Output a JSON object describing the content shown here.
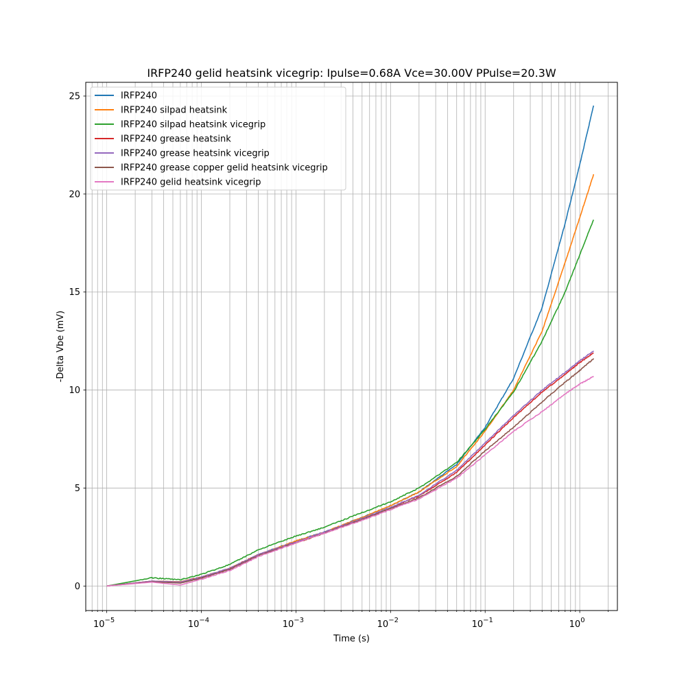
{
  "chart_data": {
    "type": "line",
    "title": "IRFP240 gelid heatsink vicegrip: Ipulse=0.68A Vce=30.00V PPulse=20.3W",
    "xlabel": "Time (s)",
    "ylabel": "-Delta Vbe (mV)",
    "xscale": "log",
    "xlim": [
      6e-06,
      2.5
    ],
    "ylim": [
      -1.25,
      25.7
    ],
    "grid": true,
    "legend_position": "upper-left",
    "x_ticks": [
      {
        "value": 1e-05,
        "base": "10",
        "exp": "−5"
      },
      {
        "value": 0.0001,
        "base": "10",
        "exp": "−4"
      },
      {
        "value": 0.001,
        "base": "10",
        "exp": "−3"
      },
      {
        "value": 0.01,
        "base": "10",
        "exp": "−2"
      },
      {
        "value": 0.1,
        "base": "10",
        "exp": "−1"
      },
      {
        "value": 1,
        "base": "10",
        "exp": "0"
      }
    ],
    "y_ticks": [
      {
        "value": 0,
        "label": "0"
      },
      {
        "value": 5,
        "label": "5"
      },
      {
        "value": 10,
        "label": "10"
      },
      {
        "value": 15,
        "label": "15"
      },
      {
        "value": 20,
        "label": "20"
      },
      {
        "value": 25,
        "label": "25"
      }
    ],
    "series": [
      {
        "name": "IRFP240",
        "color": "#1f77b4",
        "points": [
          [
            1e-05,
            0.0
          ],
          [
            3e-05,
            0.25
          ],
          [
            6e-05,
            0.22
          ],
          [
            0.0001,
            0.45
          ],
          [
            0.0002,
            0.9
          ],
          [
            0.0004,
            1.6
          ],
          [
            0.001,
            2.3
          ],
          [
            0.002,
            2.75
          ],
          [
            0.005,
            3.5
          ],
          [
            0.01,
            4.1
          ],
          [
            0.02,
            4.8
          ],
          [
            0.05,
            6.2
          ],
          [
            0.1,
            8.1
          ],
          [
            0.2,
            10.6
          ],
          [
            0.4,
            14.2
          ],
          [
            0.7,
            18.5
          ],
          [
            1.0,
            21.5
          ],
          [
            1.4,
            24.5
          ]
        ]
      },
      {
        "name": "IRFP240 silpad heatsink",
        "color": "#ff7f0e",
        "points": [
          [
            1e-05,
            0.0
          ],
          [
            3e-05,
            0.25
          ],
          [
            6e-05,
            0.22
          ],
          [
            0.0001,
            0.45
          ],
          [
            0.0002,
            0.9
          ],
          [
            0.0004,
            1.6
          ],
          [
            0.001,
            2.3
          ],
          [
            0.002,
            2.75
          ],
          [
            0.005,
            3.5
          ],
          [
            0.01,
            4.1
          ],
          [
            0.02,
            4.8
          ],
          [
            0.05,
            6.1
          ],
          [
            0.1,
            7.9
          ],
          [
            0.2,
            10.0
          ],
          [
            0.4,
            13.0
          ],
          [
            0.7,
            16.5
          ],
          [
            1.0,
            18.8
          ],
          [
            1.4,
            21.0
          ]
        ]
      },
      {
        "name": "IRFP240 silpad heatsink vicegrip",
        "color": "#2ca02c",
        "points": [
          [
            1e-05,
            0.0
          ],
          [
            3e-05,
            0.42
          ],
          [
            6e-05,
            0.32
          ],
          [
            0.0001,
            0.6
          ],
          [
            0.0002,
            1.1
          ],
          [
            0.0004,
            1.85
          ],
          [
            0.001,
            2.55
          ],
          [
            0.002,
            3.0
          ],
          [
            0.005,
            3.75
          ],
          [
            0.01,
            4.3
          ],
          [
            0.02,
            5.0
          ],
          [
            0.05,
            6.3
          ],
          [
            0.1,
            8.0
          ],
          [
            0.2,
            9.9
          ],
          [
            0.4,
            12.5
          ],
          [
            0.7,
            15.0
          ],
          [
            1.0,
            16.9
          ],
          [
            1.4,
            18.7
          ]
        ]
      },
      {
        "name": "IRFP240 grease heatsink",
        "color": "#d62728",
        "points": [
          [
            1e-05,
            0.0
          ],
          [
            3e-05,
            0.25
          ],
          [
            6e-05,
            0.2
          ],
          [
            0.0001,
            0.45
          ],
          [
            0.0002,
            0.9
          ],
          [
            0.0004,
            1.6
          ],
          [
            0.001,
            2.2
          ],
          [
            0.002,
            2.7
          ],
          [
            0.005,
            3.4
          ],
          [
            0.01,
            4.0
          ],
          [
            0.02,
            4.6
          ],
          [
            0.05,
            5.8
          ],
          [
            0.1,
            7.2
          ],
          [
            0.2,
            8.6
          ],
          [
            0.4,
            9.9
          ],
          [
            0.7,
            10.8
          ],
          [
            1.0,
            11.4
          ],
          [
            1.4,
            11.9
          ]
        ]
      },
      {
        "name": "IRFP240 grease heatsink vicegrip",
        "color": "#9467bd",
        "points": [
          [
            1e-05,
            0.0
          ],
          [
            3e-05,
            0.25
          ],
          [
            6e-05,
            0.2
          ],
          [
            0.0001,
            0.45
          ],
          [
            0.0002,
            0.9
          ],
          [
            0.0004,
            1.6
          ],
          [
            0.001,
            2.25
          ],
          [
            0.002,
            2.75
          ],
          [
            0.005,
            3.45
          ],
          [
            0.01,
            4.0
          ],
          [
            0.02,
            4.65
          ],
          [
            0.05,
            5.9
          ],
          [
            0.1,
            7.3
          ],
          [
            0.2,
            8.7
          ],
          [
            0.4,
            10.0
          ],
          [
            0.7,
            10.9
          ],
          [
            1.0,
            11.5
          ],
          [
            1.4,
            12.0
          ]
        ]
      },
      {
        "name": "IRFP240 grease copper gelid heatsink vicegrip",
        "color": "#8c564b",
        "points": [
          [
            1e-05,
            0.0
          ],
          [
            3e-05,
            0.22
          ],
          [
            6e-05,
            0.15
          ],
          [
            0.0001,
            0.4
          ],
          [
            0.0002,
            0.85
          ],
          [
            0.0004,
            1.55
          ],
          [
            0.001,
            2.2
          ],
          [
            0.002,
            2.7
          ],
          [
            0.005,
            3.4
          ],
          [
            0.01,
            3.95
          ],
          [
            0.02,
            4.5
          ],
          [
            0.05,
            5.6
          ],
          [
            0.1,
            6.9
          ],
          [
            0.2,
            8.1
          ],
          [
            0.4,
            9.4
          ],
          [
            0.7,
            10.4
          ],
          [
            1.0,
            11.0
          ],
          [
            1.4,
            11.6
          ]
        ]
      },
      {
        "name": "IRFP240 gelid heatsink vicegrip",
        "color": "#e377c2",
        "points": [
          [
            1e-05,
            0.0
          ],
          [
            3e-05,
            0.2
          ],
          [
            6e-05,
            0.05
          ],
          [
            0.0001,
            0.35
          ],
          [
            0.0002,
            0.8
          ],
          [
            0.0004,
            1.5
          ],
          [
            0.001,
            2.2
          ],
          [
            0.002,
            2.7
          ],
          [
            0.005,
            3.35
          ],
          [
            0.01,
            3.9
          ],
          [
            0.02,
            4.45
          ],
          [
            0.05,
            5.5
          ],
          [
            0.1,
            6.7
          ],
          [
            0.2,
            7.9
          ],
          [
            0.4,
            8.9
          ],
          [
            0.7,
            9.8
          ],
          [
            1.0,
            10.3
          ],
          [
            1.4,
            10.7
          ]
        ]
      }
    ]
  }
}
